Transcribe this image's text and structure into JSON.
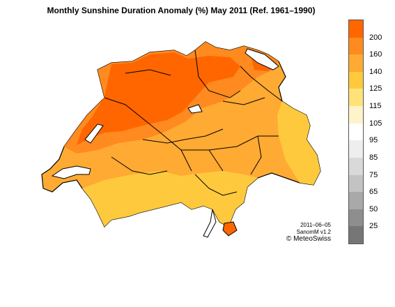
{
  "title": "Monthly Sunshine Duration Anomaly (%) May 2011  (Ref. 1961–1990)",
  "stamp": {
    "date": "2011–06–05",
    "version": "SanomM v1.2"
  },
  "credit": "© MeteoSwiss",
  "legend": {
    "bins": [
      {
        "label": "200",
        "color": "#ff6600"
      },
      {
        "label": "160",
        "color": "#ff8a1f"
      },
      {
        "label": "140",
        "color": "#ffaa33"
      },
      {
        "label": "125",
        "color": "#ffc93d"
      },
      {
        "label": "115",
        "color": "#ffe27a"
      },
      {
        "label": "105",
        "color": "#fff3c9"
      },
      {
        "label": "95",
        "color": "#ffffff"
      },
      {
        "label": "85",
        "color": "#eeeeee"
      },
      {
        "label": "75",
        "color": "#d9d9d9"
      },
      {
        "label": "65",
        "color": "#c3c3c3"
      },
      {
        "label": "50",
        "color": "#a9a9a9"
      },
      {
        "label": "25",
        "color": "#8e8e8e"
      },
      {
        "label": "",
        "color": "#767676"
      }
    ]
  },
  "map_colors": {
    "lake": "#ffffff",
    "border": "#000000"
  }
}
